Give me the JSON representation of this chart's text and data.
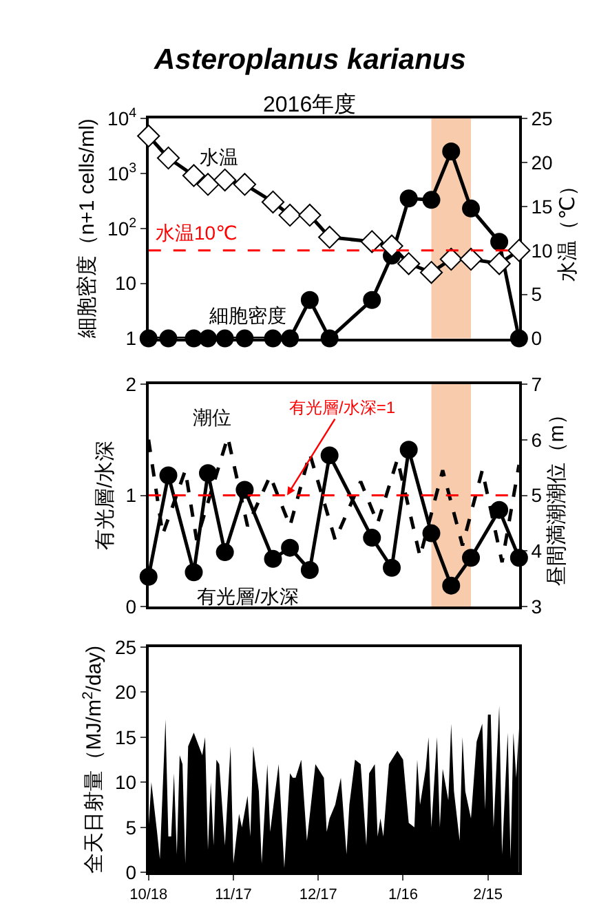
{
  "chart_data": [
    {
      "type": "line",
      "title": "Asteroplanus karianus",
      "subtitle": "2016年度",
      "ylabel": "細胞密度（n+1 cells/ml)",
      "y2label": "水温（℃）",
      "log": "y",
      "x": [
        "2016-10-18",
        "2016-10-25",
        "2016-11-03",
        "2016-11-08",
        "2016-11-14",
        "2016-11-21",
        "2016-12-01",
        "2016-12-07",
        "2016-12-14",
        "2016-12-21",
        "2017-01-05",
        "2017-01-12",
        "2017-01-18",
        "2017-01-26",
        "2017-02-02",
        "2017-02-09",
        "2017-02-19",
        "2017-02-26"
      ],
      "xlim": [
        "2016-10-18",
        "2017-02-26"
      ],
      "tick_labels": "y",
      "ylim": [
        1,
        10000
      ],
      "yticks": [
        {
          "value": 1,
          "label": "1"
        },
        {
          "value": 10,
          "label": "10"
        },
        {
          "value": 100,
          "label": "10$^{2}$"
        },
        {
          "value": 1000,
          "label": "10$^{3}$"
        },
        {
          "value": 10000,
          "label": "10$^{4}$"
        }
      ],
      "y2lim": [
        0,
        25
      ],
      "y2ticks": [
        0,
        5,
        10,
        15,
        20,
        25
      ],
      "series": [
        {
          "name": "細胞密度",
          "color": "#000000",
          "marker": "circle",
          "values": [
            1,
            1,
            1,
            1,
            1,
            1,
            1,
            1,
            5,
            1,
            5,
            32,
            350,
            330,
            2500,
            230,
            57,
            1
          ]
        },
        {
          "name": "水温",
          "color": "#000000",
          "marker": "diamond",
          "axis": "y2",
          "values": [
            23,
            20.5,
            18.5,
            17.5,
            18,
            17.5,
            15.5,
            14,
            14,
            11.5,
            11,
            10.5,
            8.5,
            7.5,
            9,
            9,
            8.5,
            10
          ]
        }
      ],
      "ref_lines": [
        {
          "axis": "y2",
          "value": 10,
          "label": "水温10℃",
          "color": "#ff0000",
          "line_style": "dashed"
        }
      ],
      "bands": [
        {
          "axis": "x",
          "from": "2017-01-26",
          "to": "2017-02-09",
          "color": "#f8cbad"
        }
      ]
    },
    {
      "type": "line",
      "ylabel": "有光層/水深",
      "y2label": "昼間満潮潮位（m）",
      "x": [
        "2016-10-18",
        "2016-10-25",
        "2016-11-03",
        "2016-11-08",
        "2016-11-14",
        "2016-11-21",
        "2016-12-01",
        "2016-12-07",
        "2016-12-14",
        "2016-12-21",
        "2017-01-05",
        "2017-01-12",
        "2017-01-18",
        "2017-01-26",
        "2017-02-02",
        "2017-02-09",
        "2017-02-19",
        "2017-02-26"
      ],
      "xlim": [
        "2016-10-18",
        "2017-02-26"
      ],
      "tick_labels": "y",
      "ylim": [
        0,
        2
      ],
      "yticks": [
        0,
        1,
        2
      ],
      "y2lim": [
        3,
        7
      ],
      "y2ticks": [
        3,
        4,
        5,
        6,
        7
      ],
      "series": [
        {
          "name": "潮位",
          "color": "#000000",
          "marker": "none",
          "line_style": "dashed",
          "axis": "y2",
          "x": [
            "2016-10-18",
            "2016-10-23",
            "2016-10-31",
            "2016-11-04",
            "2016-11-15",
            "2016-11-22",
            "2016-11-30",
            "2016-12-07",
            "2016-12-14",
            "2016-12-23",
            "2017-01-01",
            "2017-01-07",
            "2017-01-14",
            "2017-01-22",
            "2017-01-30",
            "2017-02-06",
            "2017-02-13",
            "2017-02-20",
            "2017-02-26"
          ],
          "values": [
            6.0,
            4.3,
            5.45,
            4.2,
            6.05,
            4.45,
            5.35,
            4.45,
            5.75,
            4.2,
            5.25,
            4.5,
            5.65,
            3.9,
            5.45,
            4.1,
            5.45,
            3.8,
            5.55
          ]
        },
        {
          "name": "有光層/水深",
          "color": "#000000",
          "marker": "circle",
          "values": [
            0.27,
            1.18,
            0.31,
            1.2,
            0.49,
            1.05,
            0.43,
            0.53,
            0.33,
            1.36,
            0.62,
            0.35,
            1.41,
            0.66,
            0.19,
            0.44,
            0.87,
            0.44
          ]
        }
      ],
      "ref_lines": [
        {
          "axis": "y",
          "value": 1,
          "color": "#ff0000",
          "line_style": "dashed"
        }
      ],
      "annotations": [
        {
          "text": "有光層/水深=1",
          "x": "2016-12-06",
          "y": 1
        }
      ],
      "bands": [
        {
          "axis": "x",
          "from": "2017-01-26",
          "to": "2017-02-09",
          "color": "#f8cbad"
        }
      ]
    },
    {
      "type": "area",
      "ylabel": "全天日射量（MJ/m$^{2}$/day)",
      "x": [
        "2016-10-18",
        "2016-10-19",
        "2016-10-21",
        "2016-10-22",
        "2016-10-24",
        "2016-10-25",
        "2016-10-26",
        "2016-10-27",
        "2016-10-28",
        "2016-10-29",
        "2016-10-30",
        "2016-10-31",
        "2016-11-01",
        "2016-11-03",
        "2016-11-06",
        "2016-11-07",
        "2016-11-08",
        "2016-11-09",
        "2016-11-10",
        "2016-11-11",
        "2016-11-12",
        "2016-11-14",
        "2016-11-16",
        "2016-11-17",
        "2016-11-19",
        "2016-11-20",
        "2016-11-22",
        "2016-11-23",
        "2016-11-24",
        "2016-11-26",
        "2016-11-27",
        "2016-11-29",
        "2016-11-30",
        "2016-12-03",
        "2016-12-05",
        "2016-12-07",
        "2016-12-08",
        "2016-12-09",
        "2016-12-11",
        "2016-12-13",
        "2016-12-16",
        "2016-12-19",
        "2016-12-20",
        "2016-12-21",
        "2016-12-23",
        "2016-12-25",
        "2016-12-27",
        "2016-12-28",
        "2016-12-30",
        "2017-01-01",
        "2017-01-03",
        "2017-01-04",
        "2017-01-06",
        "2017-01-07",
        "2017-01-08",
        "2017-01-09",
        "2017-01-11",
        "2017-01-14",
        "2017-01-16",
        "2017-01-18",
        "2017-01-20",
        "2017-01-21",
        "2017-01-22",
        "2017-01-24",
        "2017-01-25",
        "2017-01-26",
        "2017-01-28",
        "2017-01-29",
        "2017-01-30",
        "2017-02-01",
        "2017-02-02",
        "2017-02-03",
        "2017-02-05",
        "2017-02-06",
        "2017-02-07",
        "2017-02-09",
        "2017-02-11",
        "2017-02-13",
        "2017-02-14",
        "2017-02-15",
        "2017-02-16",
        "2017-02-17",
        "2017-02-19",
        "2017-02-20",
        "2017-02-22",
        "2017-02-23",
        "2017-02-24",
        "2017-02-25",
        "2017-02-26"
      ],
      "xlim": [
        "2016-10-18",
        "2017-02-26"
      ],
      "xticks": [
        {
          "value": "2016-10-18",
          "label": "10/18"
        },
        {
          "value": "2016-11-17",
          "label": "11/17"
        },
        {
          "value": "2016-12-17",
          "label": "12/17"
        },
        {
          "value": "2017-01-16",
          "label": "1/16"
        },
        {
          "value": "2017-02-15",
          "label": "2/15"
        }
      ],
      "ylim": [
        0,
        25
      ],
      "yticks": [
        0,
        5,
        10,
        15,
        20,
        25
      ],
      "series": [
        {
          "color": "#000000",
          "values": [
            5,
            10,
            4.5,
            1.5,
            17,
            4,
            4,
            11,
            2,
            13,
            12,
            1,
            14,
            15.5,
            13,
            15,
            2.5,
            10,
            3,
            12.5,
            12,
            3,
            14,
            1,
            6.5,
            5,
            8.5,
            4,
            14,
            9,
            1,
            12,
            4.5,
            12,
            0.5,
            11,
            10.5,
            10.5,
            12.5,
            3.5,
            12,
            10.5,
            4.5,
            6,
            7.5,
            10.5,
            2,
            7.5,
            12.5,
            12,
            3,
            11,
            12,
            4,
            6,
            4,
            12,
            13.5,
            12.5,
            5.5,
            5,
            12.5,
            7.5,
            11.5,
            15,
            5,
            15,
            5,
            11.5,
            8,
            16.5,
            9,
            3.5,
            15,
            9,
            6,
            14.5,
            16.5,
            7,
            17.5,
            17.5,
            5,
            18.5,
            2,
            15.5,
            1.5,
            15.5,
            10.5,
            16
          ]
        }
      ]
    }
  ]
}
